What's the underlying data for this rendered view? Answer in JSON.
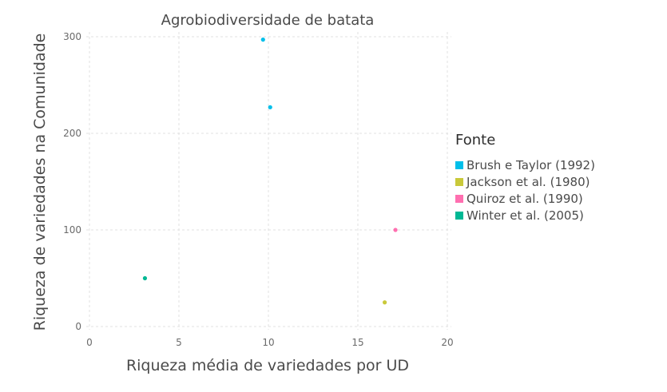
{
  "chart_data": {
    "type": "scatter",
    "title": "Agrobiodiversidade de batata",
    "xlabel": "Riqueza média de variedades por UD",
    "ylabel": "Riqueza de variedades na Comunidade",
    "xlim": [
      0,
      20
    ],
    "ylim": [
      0,
      300
    ],
    "x_ticks": [
      0,
      5,
      10,
      15,
      20
    ],
    "y_ticks": [
      0,
      100,
      200,
      300
    ],
    "x_tick_labels": [
      "0",
      "5",
      "10",
      "15",
      "20"
    ],
    "y_tick_labels": [
      "0",
      "100",
      "200",
      "300"
    ],
    "grid": true,
    "legend_position": "right",
    "legend_title": "Fonte",
    "series": [
      {
        "name": "Brush e Taylor (1992)",
        "color": "#00BFEA",
        "points": [
          {
            "x": 9.7,
            "y": 297
          },
          {
            "x": 10.1,
            "y": 227
          }
        ]
      },
      {
        "name": "Jackson et al. (1980)",
        "color": "#C9C93A",
        "points": [
          {
            "x": 16.5,
            "y": 25
          }
        ]
      },
      {
        "name": "Quiroz et al. (1990)",
        "color": "#FF6FB0",
        "points": [
          {
            "x": 17.1,
            "y": 100
          }
        ]
      },
      {
        "name": "Winter et al. (2005)",
        "color": "#00B894",
        "points": [
          {
            "x": 3.1,
            "y": 50
          }
        ]
      }
    ]
  }
}
